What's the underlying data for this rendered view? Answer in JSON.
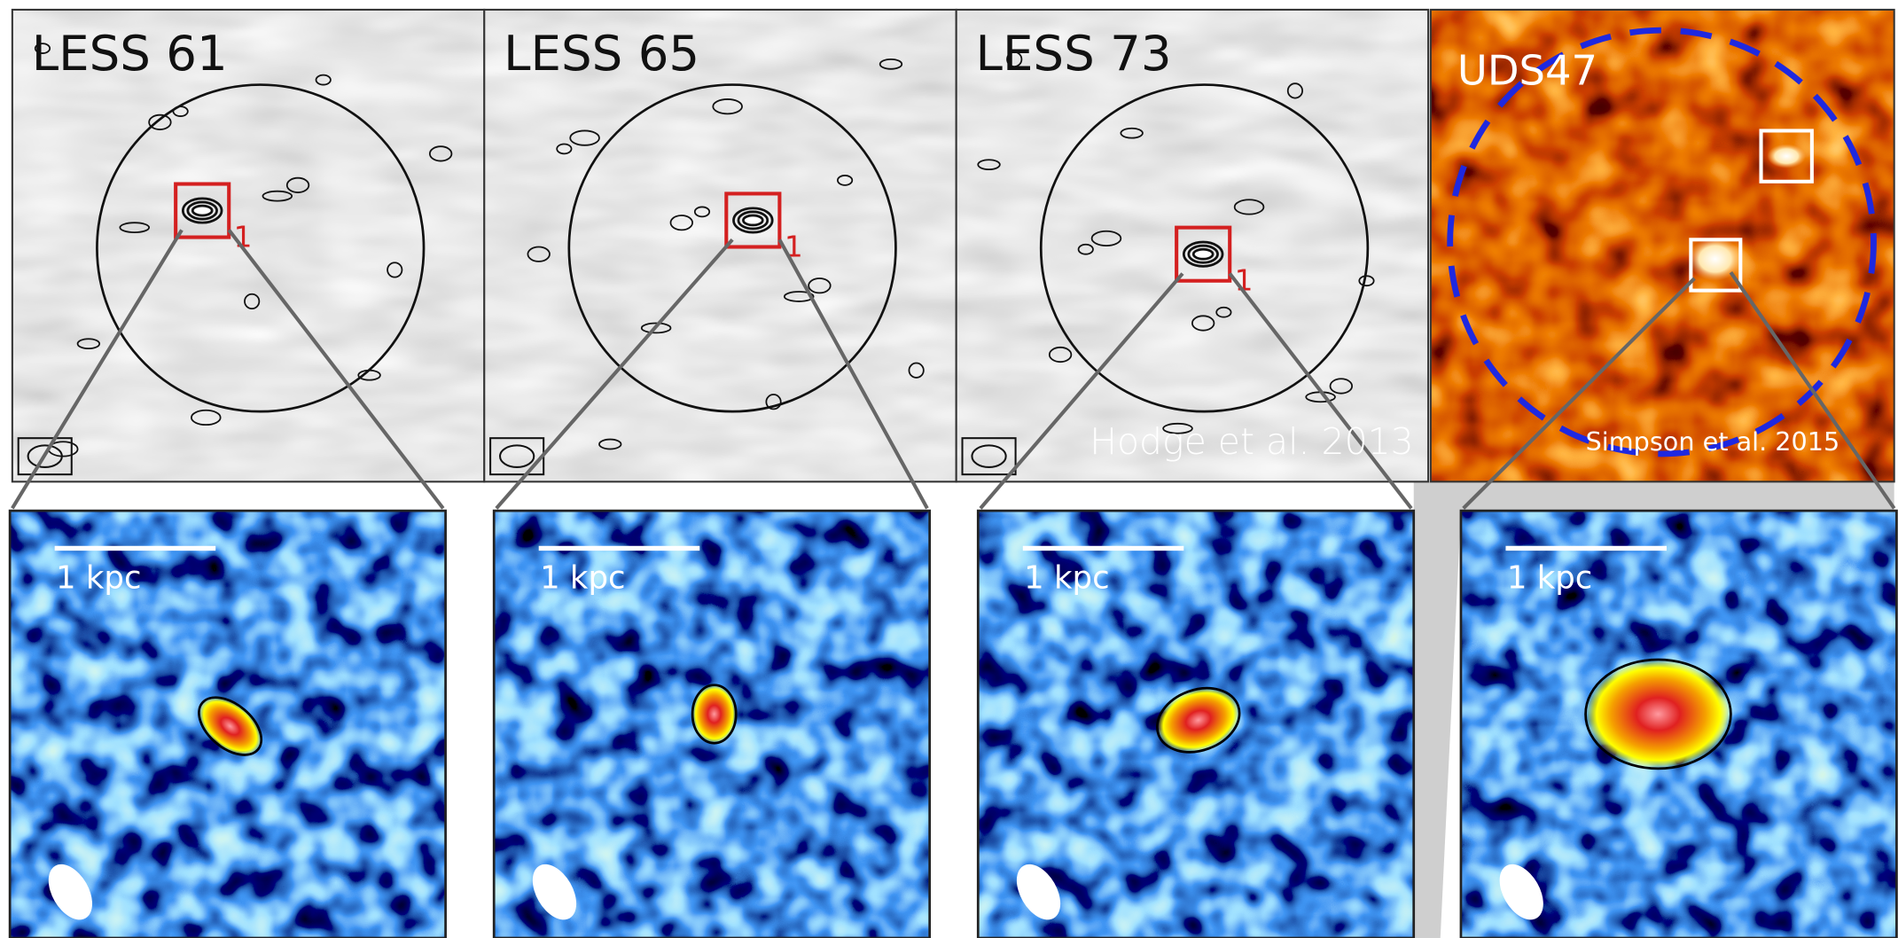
{
  "top_panels": [
    {
      "label": "LESS 61",
      "source_id": "1"
    },
    {
      "label": "LESS 65",
      "source_id": "1"
    },
    {
      "label": "LESS 73",
      "source_id": "1"
    },
    {
      "label": "UDS47"
    }
  ],
  "credits": [
    "Hodge et al. 2013",
    "Simpson et al. 2015"
  ],
  "zoom_panels": [
    {
      "scale_bar": "1 kpc"
    },
    {
      "scale_bar": "1 kpc"
    },
    {
      "scale_bar": "1 kpc"
    },
    {
      "scale_bar": "1 kpc"
    }
  ]
}
